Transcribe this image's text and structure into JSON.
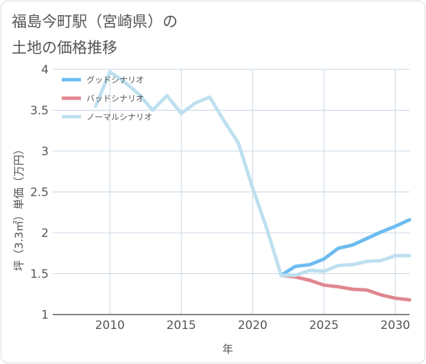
{
  "title_lines": [
    "福島今町駅（宮崎県）の",
    "土地の価格推移"
  ],
  "colors": {
    "good": "#6cbcf0",
    "bad": "#e0878f",
    "normal": "#bde0ef",
    "grid": "#c5d5e3",
    "axis": "#555555"
  },
  "chart_data": {
    "type": "line",
    "title": "福島今町駅（宮崎県）の土地の価格推移",
    "xlabel": "年",
    "ylabel": "坪（3.3㎡）単価（万円）",
    "xlim": [
      2006,
      2031
    ],
    "ylim": [
      1,
      4
    ],
    "xticks": [
      2010,
      2015,
      2020,
      2025,
      2030
    ],
    "xtick_labels": [
      "2010",
      "2015",
      "2020",
      "2025",
      "2030"
    ],
    "yticks": [
      1,
      1.5,
      2,
      2.5,
      3,
      3.5,
      4
    ],
    "ytick_labels": [
      "1",
      "1.5",
      "2",
      "2.5",
      "3",
      "3.5",
      "4"
    ],
    "legend_position": "top-left",
    "series": [
      {
        "name": "グッドシナリオ",
        "color_key": "good",
        "x": [
          2022,
          2023,
          2024,
          2025,
          2026,
          2027,
          2028,
          2029,
          2030,
          2031
        ],
        "y": [
          1.48,
          1.59,
          1.61,
          1.68,
          1.81,
          1.85,
          1.93,
          2.01,
          2.08,
          2.16
        ]
      },
      {
        "name": "バッドシナリオ",
        "color_key": "bad",
        "x": [
          2022,
          2023,
          2024,
          2025,
          2026,
          2027,
          2028,
          2029,
          2030,
          2031
        ],
        "y": [
          1.48,
          1.46,
          1.42,
          1.36,
          1.34,
          1.31,
          1.3,
          1.24,
          1.2,
          1.18
        ]
      },
      {
        "name": "ノーマルシナリオ",
        "color_key": "normal",
        "x": [
          2009,
          2010,
          2011,
          2012,
          2013,
          2014,
          2015,
          2016,
          2017,
          2018,
          2019,
          2020,
          2021,
          2022,
          2023,
          2024,
          2025,
          2026,
          2027,
          2028,
          2029,
          2030,
          2031
        ],
        "y": [
          3.55,
          3.97,
          3.85,
          3.7,
          3.5,
          3.68,
          3.46,
          3.59,
          3.66,
          3.37,
          3.1,
          2.55,
          2.05,
          1.48,
          1.48,
          1.54,
          1.53,
          1.6,
          1.61,
          1.65,
          1.66,
          1.72,
          1.72
        ]
      }
    ]
  }
}
